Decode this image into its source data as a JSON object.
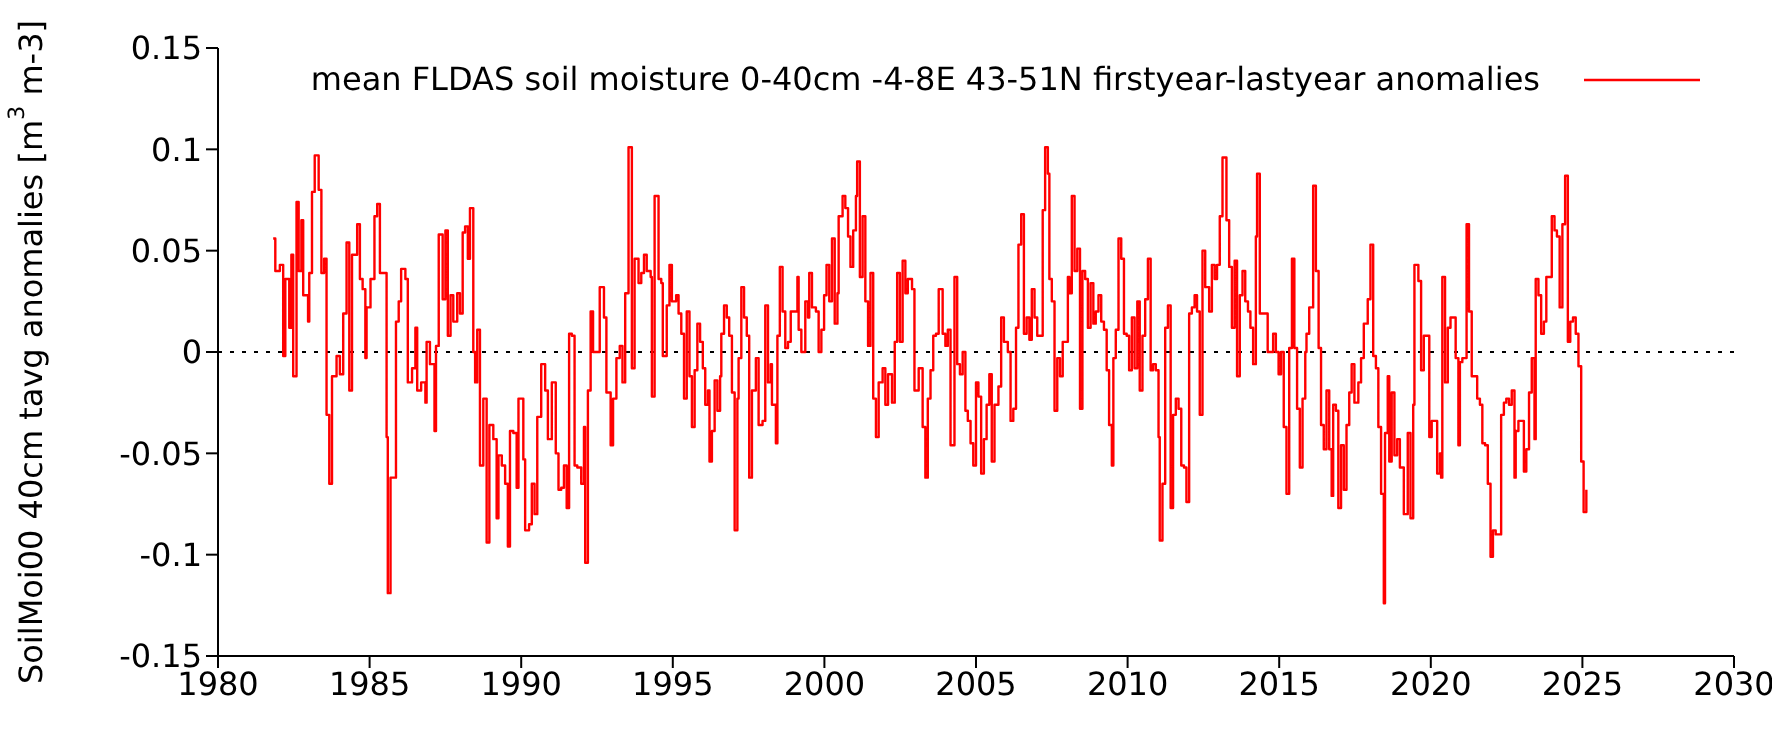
{
  "chart_data": {
    "type": "step",
    "ylabel": "SoilMoi00 40cm tavg anomalies [m$^{3}$ m-3]",
    "xlim": [
      1980,
      2030
    ],
    "xticks": [
      1980,
      1985,
      1990,
      1995,
      2000,
      2005,
      2010,
      2015,
      2020,
      2025,
      2030
    ],
    "ylim": [
      -0.15,
      0.15
    ],
    "yticks": [
      -0.15,
      -0.1,
      -0.05,
      0,
      0.05,
      0.1,
      0.15
    ],
    "legend": "top right",
    "line_style": "solid",
    "ref_lines": [
      {
        "axis": "y",
        "value": 0,
        "color": "#000000",
        "line_style": "dotted"
      }
    ],
    "series": [
      {
        "name": "mean FLDAS soil moisture 0-40cm -4-8E 43-51N firstyear-lastyear anomalies",
        "color": "#ff0000",
        "x": [
          1981.82,
          1981.89,
          1982.04,
          1982.15,
          1982.22,
          1982.35,
          1982.42,
          1982.48,
          1982.59,
          1982.66,
          1982.75,
          1982.81,
          1982.97,
          1983.01,
          1983.1,
          1983.19,
          1983.32,
          1983.41,
          1983.5,
          1983.58,
          1983.67,
          1983.76,
          1983.91,
          1984.02,
          1984.13,
          1984.24,
          1984.33,
          1984.42,
          1984.59,
          1984.68,
          1984.77,
          1984.86,
          1984.9,
          1985.03,
          1985.16,
          1985.25,
          1985.34,
          1985.56,
          1985.6,
          1985.69,
          1985.87,
          1985.96,
          1986.04,
          1986.18,
          1986.26,
          1986.4,
          1986.51,
          1986.57,
          1986.7,
          1986.84,
          1986.88,
          1986.99,
          1987.14,
          1987.19,
          1987.28,
          1987.41,
          1987.5,
          1987.58,
          1987.67,
          1987.76,
          1987.89,
          1987.98,
          1988.07,
          1988.15,
          1988.24,
          1988.31,
          1988.42,
          1988.48,
          1988.55,
          1988.64,
          1988.75,
          1988.86,
          1988.95,
          1989.08,
          1989.19,
          1989.25,
          1989.36,
          1989.47,
          1989.56,
          1989.63,
          1989.74,
          1989.85,
          1989.91,
          1990.07,
          1990.13,
          1990.26,
          1990.35,
          1990.44,
          1990.53,
          1990.66,
          1990.79,
          1990.88,
          1991.01,
          1991.14,
          1991.23,
          1991.32,
          1991.41,
          1991.5,
          1991.58,
          1991.67,
          1991.76,
          1991.85,
          1991.98,
          1992.07,
          1992.11,
          1992.2,
          1992.29,
          1992.37,
          1992.59,
          1992.73,
          1992.81,
          1992.95,
          1993.03,
          1993.14,
          1993.25,
          1993.34,
          1993.43,
          1993.54,
          1993.65,
          1993.74,
          1993.87,
          1993.96,
          1994.05,
          1994.14,
          1994.27,
          1994.31,
          1994.4,
          1994.53,
          1994.62,
          1994.67,
          1994.8,
          1994.89,
          1994.97,
          1995.11,
          1995.19,
          1995.28,
          1995.37,
          1995.46,
          1995.55,
          1995.63,
          1995.72,
          1995.81,
          1995.9,
          1995.99,
          1996.07,
          1996.16,
          1996.21,
          1996.29,
          1996.38,
          1996.47,
          1996.56,
          1996.6,
          1996.69,
          1996.78,
          1996.86,
          1996.95,
          1997.04,
          1997.13,
          1997.17,
          1997.26,
          1997.35,
          1997.44,
          1997.52,
          1997.61,
          1997.74,
          1997.83,
          1997.96,
          1998.05,
          1998.14,
          1998.23,
          1998.27,
          1998.4,
          1998.45,
          1998.53,
          1998.62,
          1998.71,
          1998.8,
          1998.89,
          1999.11,
          1999.15,
          1999.24,
          1999.37,
          1999.46,
          1999.5,
          1999.59,
          1999.72,
          1999.81,
          1999.9,
          1999.99,
          2000.07,
          2000.16,
          2000.25,
          2000.34,
          2000.43,
          2000.47,
          2000.6,
          2000.69,
          2000.78,
          2000.86,
          2000.95,
          2001.04,
          2001.08,
          2001.17,
          2001.26,
          2001.35,
          2001.44,
          2001.52,
          2001.61,
          2001.7,
          2001.79,
          2001.92,
          2002.01,
          2002.1,
          2002.23,
          2002.32,
          2002.4,
          2002.49,
          2002.58,
          2002.67,
          2002.75,
          2002.89,
          2002.97,
          2003.11,
          2003.24,
          2003.33,
          2003.41,
          2003.5,
          2003.59,
          2003.68,
          2003.77,
          2003.9,
          2003.99,
          2004.07,
          2004.16,
          2004.29,
          2004.38,
          2004.47,
          2004.56,
          2004.65,
          2004.73,
          2004.82,
          2004.91,
          2005.0,
          2005.08,
          2005.17,
          2005.26,
          2005.35,
          2005.44,
          2005.52,
          2005.61,
          2005.74,
          2005.83,
          2005.92,
          2006.05,
          2006.14,
          2006.23,
          2006.32,
          2006.4,
          2006.49,
          2006.58,
          2006.67,
          2006.76,
          2006.84,
          2006.93,
          2007.02,
          2007.2,
          2007.28,
          2007.37,
          2007.42,
          2007.5,
          2007.59,
          2007.68,
          2007.77,
          2007.86,
          2008.03,
          2008.08,
          2008.16,
          2008.25,
          2008.34,
          2008.43,
          2008.51,
          2008.6,
          2008.69,
          2008.78,
          2008.87,
          2008.95,
          2009.04,
          2009.13,
          2009.22,
          2009.31,
          2009.39,
          2009.48,
          2009.53,
          2009.61,
          2009.7,
          2009.79,
          2009.88,
          2009.97,
          2010.05,
          2010.14,
          2010.23,
          2010.32,
          2010.4,
          2010.49,
          2010.58,
          2010.67,
          2010.76,
          2010.84,
          2010.93,
          2011.02,
          2011.06,
          2011.15,
          2011.24,
          2011.33,
          2011.42,
          2011.5,
          2011.59,
          2011.68,
          2011.77,
          2011.86,
          2011.94,
          2012.03,
          2012.12,
          2012.21,
          2012.29,
          2012.38,
          2012.47,
          2012.56,
          2012.69,
          2012.78,
          2012.87,
          2012.95,
          2013.04,
          2013.13,
          2013.26,
          2013.35,
          2013.44,
          2013.53,
          2013.61,
          2013.7,
          2013.79,
          2013.88,
          2013.97,
          2014.05,
          2014.14,
          2014.23,
          2014.27,
          2014.36,
          2014.54,
          2014.62,
          2014.8,
          2014.89,
          2014.98,
          2015.06,
          2015.15,
          2015.24,
          2015.33,
          2015.42,
          2015.5,
          2015.59,
          2015.68,
          2015.77,
          2015.86,
          2015.9,
          2015.99,
          2016.12,
          2016.21,
          2016.3,
          2016.38,
          2016.47,
          2016.56,
          2016.65,
          2016.73,
          2016.78,
          2016.87,
          2016.95,
          2017.04,
          2017.13,
          2017.22,
          2017.31,
          2017.39,
          2017.48,
          2017.61,
          2017.7,
          2017.79,
          2017.92,
          2018.01,
          2018.1,
          2018.19,
          2018.27,
          2018.36,
          2018.45,
          2018.49,
          2018.58,
          2018.63,
          2018.71,
          2018.8,
          2018.89,
          2018.98,
          2019.11,
          2019.24,
          2019.33,
          2019.42,
          2019.46,
          2019.59,
          2019.68,
          2019.77,
          2019.95,
          2020.03,
          2020.21,
          2020.3,
          2020.34,
          2020.38,
          2020.47,
          2020.56,
          2020.65,
          2020.82,
          2020.91,
          2020.96,
          2021.04,
          2021.18,
          2021.26,
          2021.35,
          2021.53,
          2021.62,
          2021.7,
          2021.79,
          2021.88,
          2021.97,
          2022.05,
          2022.14,
          2022.32,
          2022.41,
          2022.49,
          2022.58,
          2022.67,
          2022.76,
          2022.8,
          2022.89,
          2023.07,
          2023.15,
          2023.24,
          2023.33,
          2023.42,
          2023.46,
          2023.55,
          2023.64,
          2023.73,
          2023.81,
          2023.99,
          2024.08,
          2024.16,
          2024.25,
          2024.34,
          2024.43,
          2024.52,
          2024.6,
          2024.69,
          2024.78,
          2024.87,
          2024.96,
          2025.04,
          2025.13
        ],
        "values": [
          0.056,
          0.04,
          0.043,
          -0.002,
          0.036,
          0.012,
          0.048,
          -0.012,
          0.074,
          0.04,
          0.065,
          0.028,
          0.015,
          0.039,
          0.079,
          0.097,
          0.08,
          0.039,
          0.046,
          -0.031,
          -0.065,
          -0.012,
          -0.002,
          -0.011,
          0.019,
          0.054,
          -0.019,
          0.048,
          0.063,
          0.036,
          0.031,
          -0.003,
          0.022,
          0.036,
          0.067,
          0.073,
          0.039,
          -0.042,
          -0.119,
          -0.062,
          0.015,
          0.025,
          0.041,
          0.036,
          -0.015,
          -0.008,
          0.012,
          -0.019,
          -0.015,
          -0.025,
          0.005,
          -0.006,
          -0.039,
          0.003,
          0.058,
          0.026,
          0.06,
          0.008,
          0.028,
          0.015,
          0.029,
          0.019,
          0.059,
          0.062,
          0.046,
          0.071,
          0.0,
          -0.015,
          0.011,
          -0.056,
          -0.023,
          -0.094,
          -0.036,
          -0.043,
          -0.082,
          -0.051,
          -0.056,
          -0.065,
          -0.096,
          -0.039,
          -0.04,
          -0.067,
          -0.023,
          -0.053,
          -0.088,
          -0.085,
          -0.065,
          -0.08,
          -0.032,
          -0.006,
          -0.019,
          -0.043,
          -0.015,
          -0.05,
          -0.068,
          -0.067,
          -0.056,
          -0.077,
          0.009,
          0.008,
          -0.056,
          -0.057,
          -0.065,
          -0.037,
          -0.104,
          -0.019,
          0.02,
          0.0,
          0.032,
          0.017,
          -0.02,
          -0.046,
          -0.023,
          -0.003,
          0.003,
          -0.015,
          0.029,
          0.101,
          -0.008,
          0.046,
          0.034,
          0.039,
          0.048,
          0.04,
          0.037,
          -0.022,
          0.077,
          0.036,
          0.034,
          -0.002,
          0.023,
          0.043,
          0.025,
          0.028,
          0.019,
          0.009,
          -0.023,
          0.02,
          -0.012,
          -0.037,
          -0.009,
          0.014,
          0.005,
          -0.008,
          -0.026,
          -0.019,
          -0.054,
          -0.039,
          -0.014,
          -0.029,
          -0.012,
          0.009,
          0.023,
          0.017,
          0.008,
          -0.02,
          -0.088,
          -0.023,
          -0.003,
          0.032,
          0.017,
          0.008,
          -0.062,
          -0.019,
          -0.003,
          -0.036,
          -0.034,
          0.023,
          -0.015,
          -0.006,
          -0.026,
          -0.045,
          0.008,
          0.042,
          0.02,
          0.002,
          0.005,
          0.02,
          0.037,
          0.011,
          0.0,
          0.025,
          0.017,
          0.039,
          0.022,
          0.02,
          0.0,
          0.011,
          0.028,
          0.043,
          0.025,
          0.056,
          0.014,
          0.029,
          0.067,
          0.077,
          0.071,
          0.057,
          0.042,
          0.06,
          0.077,
          0.094,
          0.037,
          0.067,
          0.025,
          0.003,
          0.039,
          -0.023,
          -0.042,
          -0.015,
          -0.008,
          -0.026,
          -0.011,
          -0.025,
          0.005,
          0.039,
          0.005,
          0.045,
          0.029,
          0.036,
          0.031,
          -0.019,
          -0.008,
          -0.037,
          -0.062,
          -0.023,
          -0.009,
          0.008,
          0.009,
          0.031,
          0.009,
          0.003,
          0.011,
          -0.046,
          0.037,
          -0.006,
          -0.011,
          0.0,
          -0.029,
          -0.034,
          -0.045,
          -0.056,
          -0.015,
          -0.022,
          -0.06,
          -0.043,
          -0.026,
          -0.011,
          -0.054,
          -0.026,
          -0.017,
          0.017,
          0.005,
          0.0,
          -0.034,
          -0.028,
          0.012,
          0.053,
          0.068,
          0.009,
          0.017,
          0.006,
          0.031,
          0.017,
          0.008,
          0.07,
          0.101,
          0.088,
          0.036,
          0.025,
          -0.029,
          -0.003,
          -0.012,
          0.005,
          0.037,
          0.029,
          0.077,
          0.04,
          0.051,
          -0.028,
          0.04,
          0.036,
          0.012,
          0.034,
          0.014,
          0.02,
          0.028,
          0.015,
          0.011,
          -0.009,
          -0.036,
          -0.056,
          -0.003,
          0.011,
          0.056,
          0.046,
          0.009,
          0.008,
          -0.009,
          0.017,
          -0.008,
          0.025,
          -0.019,
          0.008,
          0.026,
          0.046,
          -0.009,
          -0.006,
          -0.009,
          -0.042,
          -0.093,
          -0.065,
          0.012,
          0.023,
          -0.077,
          -0.031,
          -0.023,
          -0.028,
          -0.056,
          -0.057,
          -0.074,
          0.019,
          0.022,
          0.028,
          0.02,
          -0.031,
          0.05,
          0.032,
          0.02,
          0.043,
          0.036,
          0.043,
          0.067,
          0.096,
          0.065,
          0.042,
          0.012,
          0.045,
          -0.012,
          0.028,
          0.04,
          0.025,
          0.02,
          0.012,
          -0.006,
          0.057,
          0.088,
          0.019,
          0.019,
          0.0,
          0.009,
          0.0,
          -0.011,
          0.0,
          -0.037,
          -0.07,
          0.002,
          0.046,
          0.002,
          -0.028,
          -0.057,
          -0.023,
          0.0,
          0.009,
          0.022,
          0.082,
          0.04,
          0.002,
          -0.036,
          -0.048,
          -0.019,
          -0.048,
          -0.071,
          -0.026,
          -0.029,
          -0.077,
          -0.046,
          -0.068,
          -0.036,
          -0.02,
          -0.006,
          -0.025,
          -0.015,
          -0.003,
          0.014,
          0.026,
          0.053,
          -0.002,
          -0.008,
          -0.037,
          -0.07,
          -0.124,
          -0.04,
          -0.012,
          -0.054,
          -0.02,
          -0.051,
          -0.043,
          -0.057,
          -0.08,
          -0.04,
          -0.082,
          -0.026,
          0.043,
          0.035,
          -0.009,
          0.008,
          -0.042,
          -0.034,
          -0.06,
          -0.05,
          -0.062,
          0.037,
          -0.015,
          0.012,
          0.017,
          -0.003,
          -0.046,
          -0.005,
          -0.003,
          0.063,
          0.02,
          -0.012,
          -0.023,
          -0.026,
          -0.045,
          -0.046,
          -0.065,
          -0.101,
          -0.088,
          -0.09,
          -0.031,
          -0.025,
          -0.023,
          -0.026,
          -0.019,
          -0.062,
          -0.039,
          -0.034,
          -0.059,
          -0.048,
          -0.02,
          -0.003,
          -0.043,
          0.036,
          0.028,
          0.009,
          0.015,
          0.037,
          0.067,
          0.06,
          0.057,
          0.022,
          0.063,
          0.087,
          0.005,
          0.015,
          0.017,
          0.009,
          -0.007,
          -0.054,
          -0.079,
          -0.068
        ]
      }
    ]
  }
}
